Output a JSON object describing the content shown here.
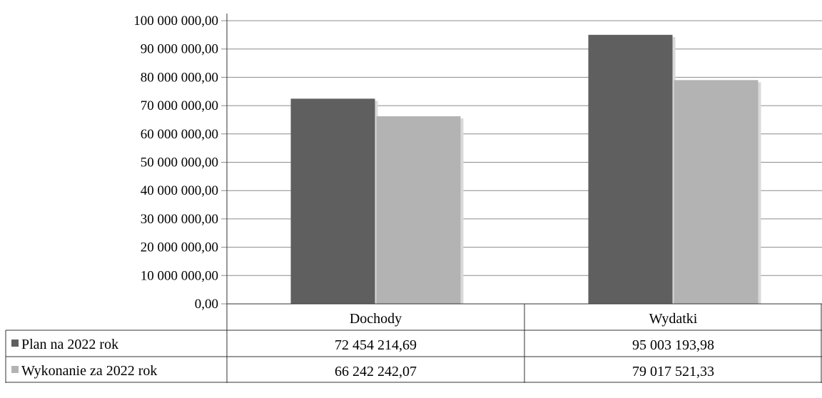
{
  "chart_data": {
    "type": "bar",
    "categories": [
      "Dochody",
      "Wydatki"
    ],
    "series": [
      {
        "name": "Plan na 2022 rok",
        "values": [
          72454214.69,
          95003193.98
        ],
        "value_labels": [
          "72 454 214,69",
          "95 003 193,98"
        ],
        "color": "#5f5f5f"
      },
      {
        "name": "Wykonanie za 2022 rok",
        "values": [
          66242242.07,
          79017521.33
        ],
        "value_labels": [
          "66 242 242,07",
          "79 017 521,33"
        ],
        "color": "#b3b3b3"
      }
    ],
    "ylim": [
      0,
      100000000
    ],
    "y_ticks": [
      {
        "value": 0,
        "label": "0,00"
      },
      {
        "value": 10000000,
        "label": "10 000 000,00"
      },
      {
        "value": 20000000,
        "label": "20 000 000,00"
      },
      {
        "value": 30000000,
        "label": "30 000 000,00"
      },
      {
        "value": 40000000,
        "label": "40 000 000,00"
      },
      {
        "value": 50000000,
        "label": "50 000 000,00"
      },
      {
        "value": 60000000,
        "label": "60 000 000,00"
      },
      {
        "value": 70000000,
        "label": "70 000 000,00"
      },
      {
        "value": 80000000,
        "label": "80 000 000,00"
      },
      {
        "value": 90000000,
        "label": "90 000 000,00"
      },
      {
        "value": 100000000,
        "label": "100 000 000,00"
      }
    ],
    "grid": true,
    "legend": "data-table",
    "title": "",
    "xlabel": "",
    "ylabel": ""
  }
}
